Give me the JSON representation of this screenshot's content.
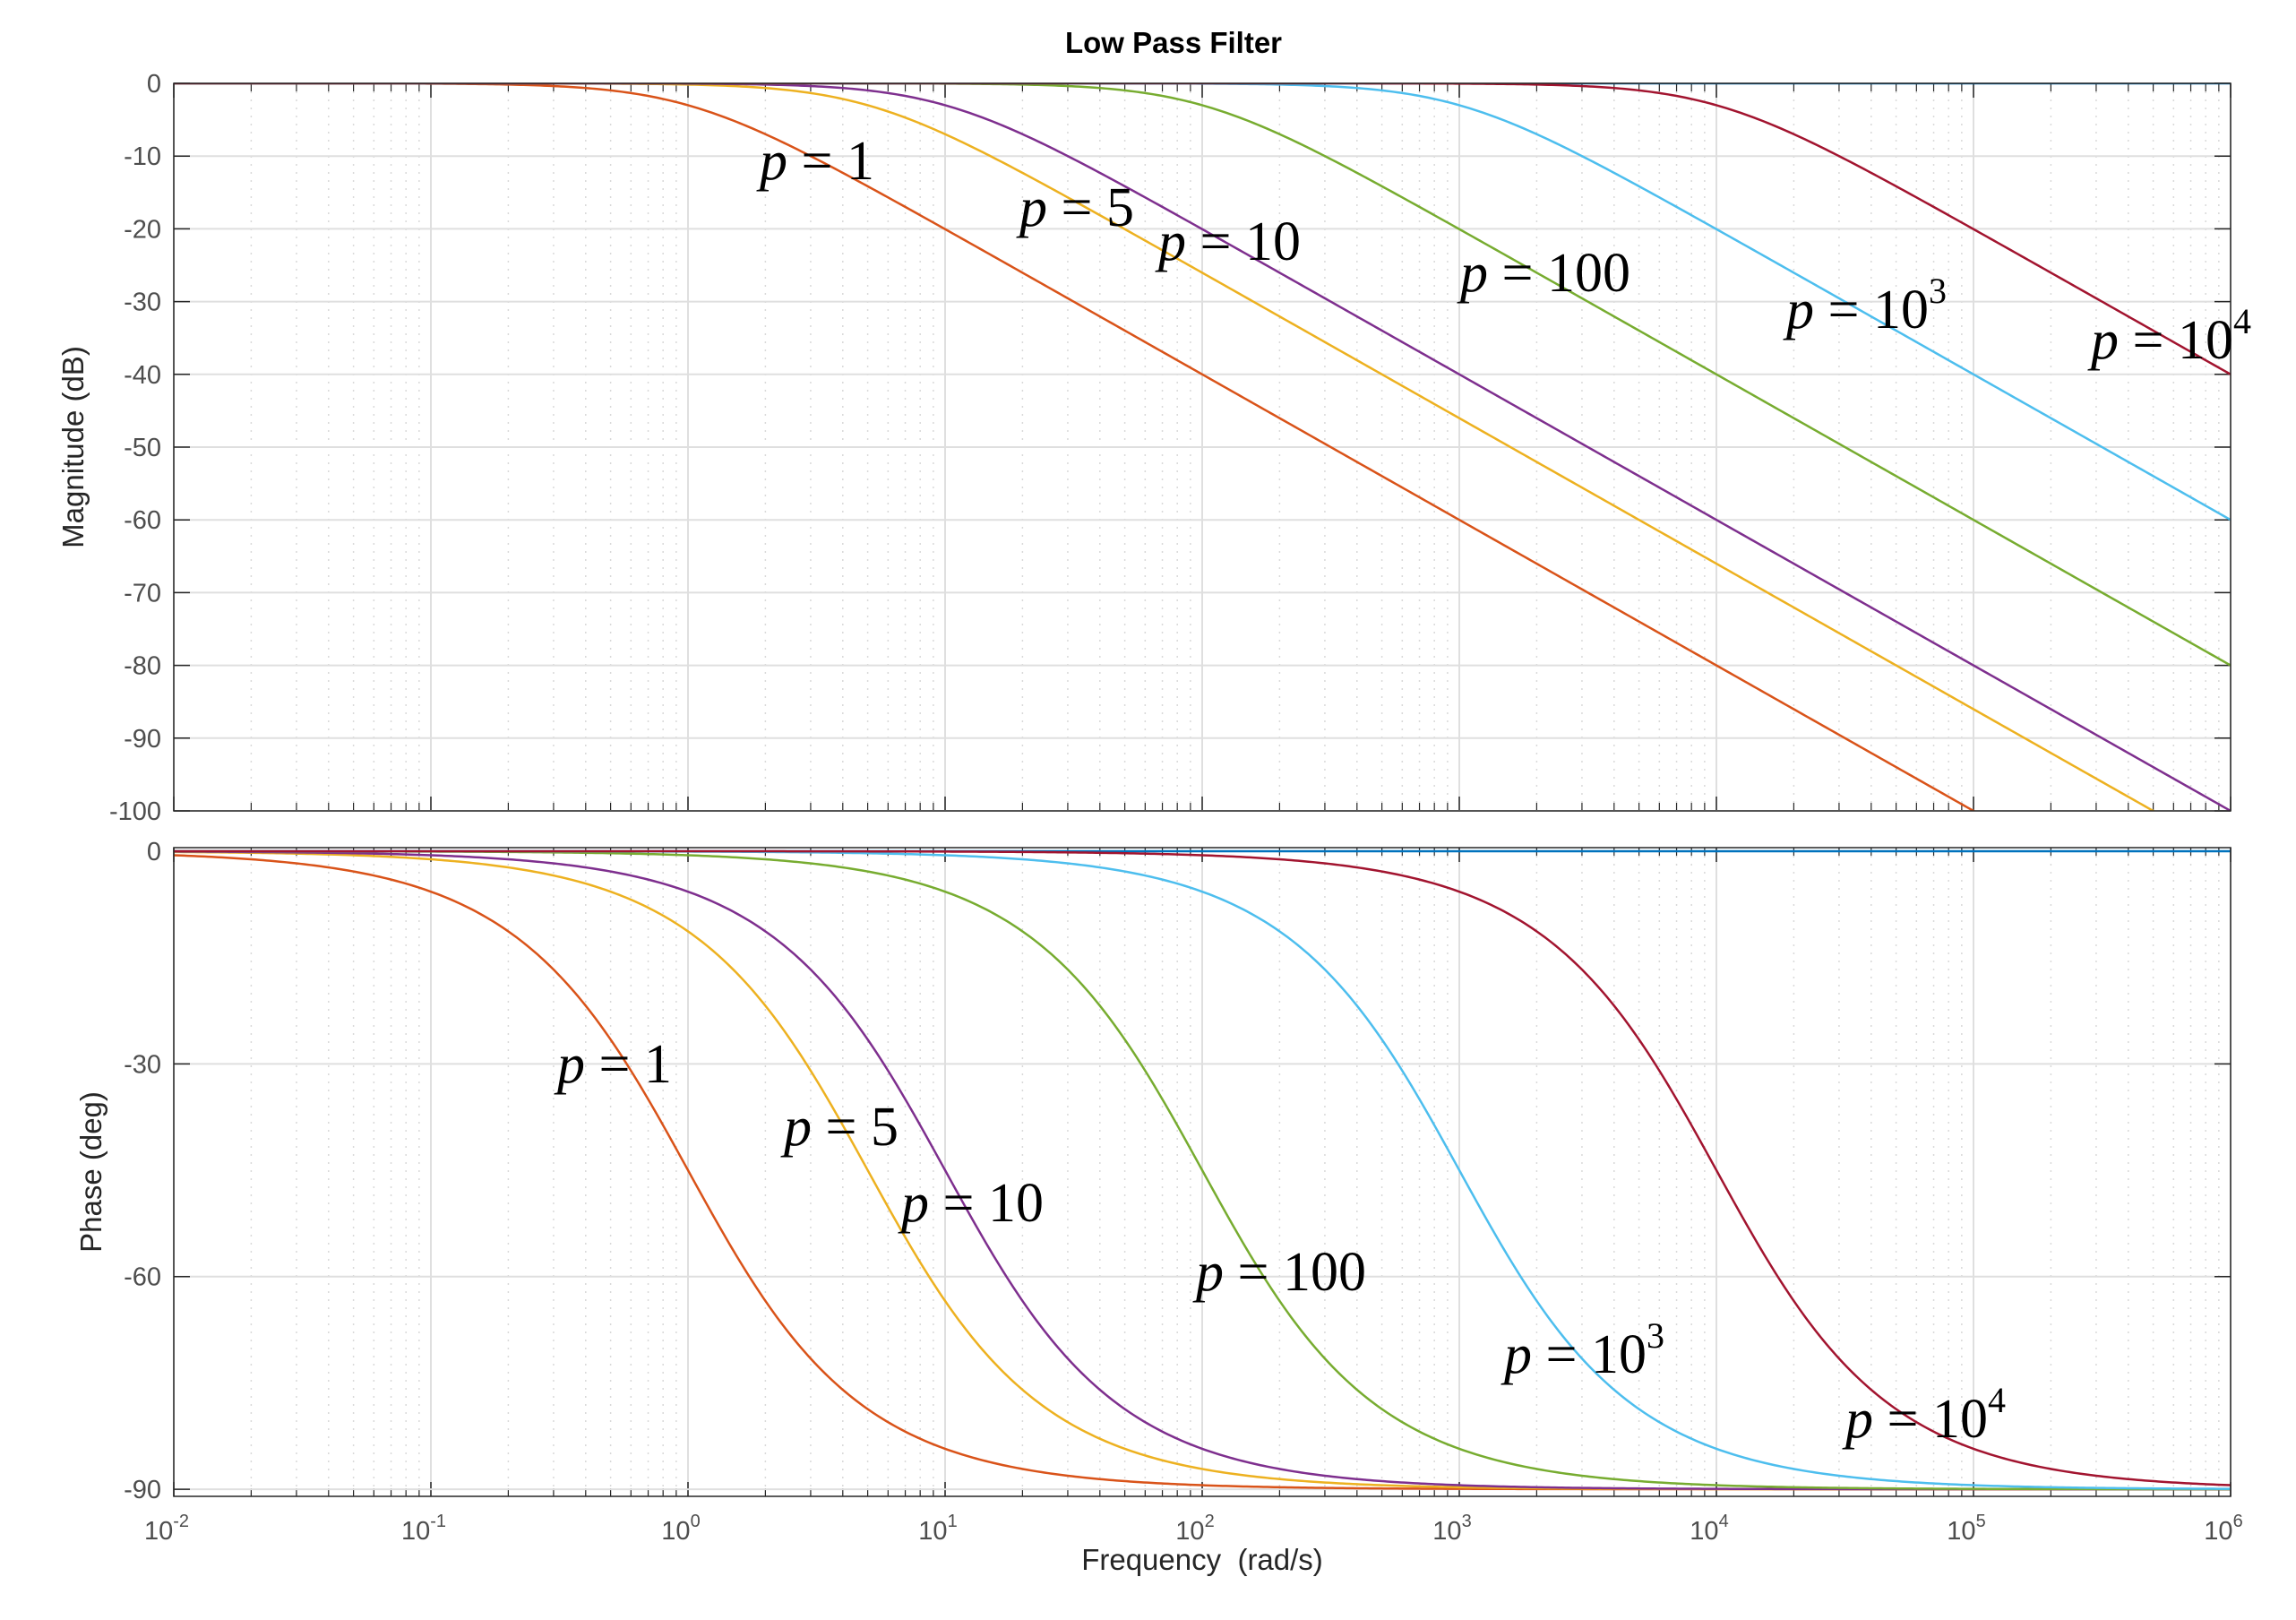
{
  "chart_data": {
    "type": "line",
    "title": "Low Pass Filter",
    "xlabel": "Frequency  (rad/s)",
    "xscale": "log",
    "xlim": [
      0.01,
      1000000
    ],
    "x_ticks": [
      {
        "base": "10",
        "exp": "-2"
      },
      {
        "base": "10",
        "exp": "-1"
      },
      {
        "base": "10",
        "exp": "0"
      },
      {
        "base": "10",
        "exp": "1"
      },
      {
        "base": "10",
        "exp": "2"
      },
      {
        "base": "10",
        "exp": "3"
      },
      {
        "base": "10",
        "exp": "4"
      },
      {
        "base": "10",
        "exp": "5"
      },
      {
        "base": "10",
        "exp": "6"
      }
    ],
    "grid": true,
    "series_colors": [
      "#d95319",
      "#edb120",
      "#7e2f8e",
      "#77ac30",
      "#4dbeee",
      "#a2142f"
    ],
    "baseline_color": "#0072bd",
    "poles": [
      1,
      5,
      10,
      100,
      1000,
      10000
    ],
    "panels": [
      {
        "name": "magnitude",
        "ylabel": "Magnitude (dB)",
        "ylim": [
          -100,
          0
        ],
        "y_ticks": [
          "0",
          "-10",
          "-20",
          "-30",
          "-40",
          "-50",
          "-60",
          "-70",
          "-80",
          "-90",
          "-100"
        ],
        "series": [
          {
            "pole": 1,
            "x": [
              0.01,
              0.1,
              1,
              10,
              100,
              1000,
              10000,
              100000
            ],
            "values": [
              0,
              -0.04,
              -3.01,
              -20.04,
              -40,
              -60,
              -80,
              -100
            ]
          },
          {
            "pole": 5,
            "x": [
              0.01,
              0.1,
              1,
              5,
              10,
              100,
              1000,
              10000,
              100000,
              500000
            ],
            "values": [
              0,
              0,
              -0.17,
              -3.01,
              -6.99,
              -26.03,
              -46.02,
              -66.02,
              -86.02,
              -100
            ]
          },
          {
            "pole": 10,
            "x": [
              0.01,
              0.1,
              1,
              10,
              100,
              1000,
              10000,
              100000,
              1000000
            ],
            "values": [
              0,
              0,
              -0.04,
              -3.01,
              -20.04,
              -40,
              -60,
              -80,
              -100
            ]
          },
          {
            "pole": 100,
            "x": [
              0.01,
              1,
              10,
              100,
              1000,
              10000,
              100000,
              1000000
            ],
            "values": [
              0,
              0,
              -0.04,
              -3.01,
              -20.04,
              -40,
              -60,
              -80
            ]
          },
          {
            "pole": 1000,
            "x": [
              0.01,
              10,
              100,
              1000,
              10000,
              100000,
              1000000
            ],
            "values": [
              0,
              0,
              -0.04,
              -3.01,
              -20.04,
              -40,
              -60
            ]
          },
          {
            "pole": 10000,
            "x": [
              0.01,
              100,
              1000,
              10000,
              100000,
              1000000
            ],
            "values": [
              0,
              0,
              -0.04,
              -3.01,
              -20.04,
              -40
            ]
          }
        ],
        "labels": [
          {
            "var": "p",
            "eq": " = ",
            "val": "1",
            "sup": ""
          },
          {
            "var": "p",
            "eq": " = ",
            "val": "5",
            "sup": ""
          },
          {
            "var": "p",
            "eq": " = ",
            "val": "10",
            "sup": ""
          },
          {
            "var": "p",
            "eq": " = ",
            "val": "100",
            "sup": ""
          },
          {
            "var": "p",
            "eq": " = ",
            "val": "10",
            "sup": "3"
          },
          {
            "var": "p",
            "eq": " = ",
            "val": "10",
            "sup": "4"
          }
        ]
      },
      {
        "name": "phase",
        "ylabel": "Phase (deg)",
        "ylim": [
          -91,
          0.5
        ],
        "y_ticks": [
          {
            "label": "0",
            "value": 0
          },
          {
            "label": "-30",
            "value": -30
          },
          {
            "label": "-60",
            "value": -60
          },
          {
            "label": "-90",
            "value": -90
          }
        ],
        "series": [
          {
            "pole": 1,
            "x": [
              0.01,
              0.1,
              1,
              10,
              100,
              1000000
            ],
            "values": [
              -0.6,
              -5.7,
              -45,
              -84.3,
              -89.4,
              -90
            ]
          },
          {
            "pole": 5,
            "x": [
              0.01,
              0.5,
              5,
              50,
              500,
              1000000
            ],
            "values": [
              -0.1,
              -5.7,
              -45,
              -84.3,
              -89.4,
              -90
            ]
          },
          {
            "pole": 10,
            "x": [
              0.01,
              1,
              10,
              100,
              1000,
              1000000
            ],
            "values": [
              -0.06,
              -5.7,
              -45,
              -84.3,
              -89.4,
              -90
            ]
          },
          {
            "pole": 100,
            "x": [
              0.01,
              10,
              100,
              1000,
              10000,
              1000000
            ],
            "values": [
              0,
              -5.7,
              -45,
              -84.3,
              -89.4,
              -89.99
            ]
          },
          {
            "pole": 1000,
            "x": [
              0.01,
              100,
              1000,
              10000,
              100000,
              1000000
            ],
            "values": [
              0,
              -5.7,
              -45,
              -84.3,
              -89.4,
              -89.94
            ]
          },
          {
            "pole": 10000,
            "x": [
              0.01,
              1000,
              10000,
              100000,
              1000000
            ],
            "values": [
              0,
              -5.7,
              -45,
              -84.3,
              -89.4
            ]
          }
        ],
        "labels": [
          {
            "var": "p",
            "eq": " = ",
            "val": "1",
            "sup": ""
          },
          {
            "var": "p",
            "eq": " = ",
            "val": "5",
            "sup": ""
          },
          {
            "var": "p",
            "eq": " = ",
            "val": "10",
            "sup": ""
          },
          {
            "var": "p",
            "eq": " = ",
            "val": "100",
            "sup": ""
          },
          {
            "var": "p",
            "eq": " = ",
            "val": "10",
            "sup": "3"
          },
          {
            "var": "p",
            "eq": " = ",
            "val": "10",
            "sup": "4"
          }
        ]
      }
    ]
  }
}
